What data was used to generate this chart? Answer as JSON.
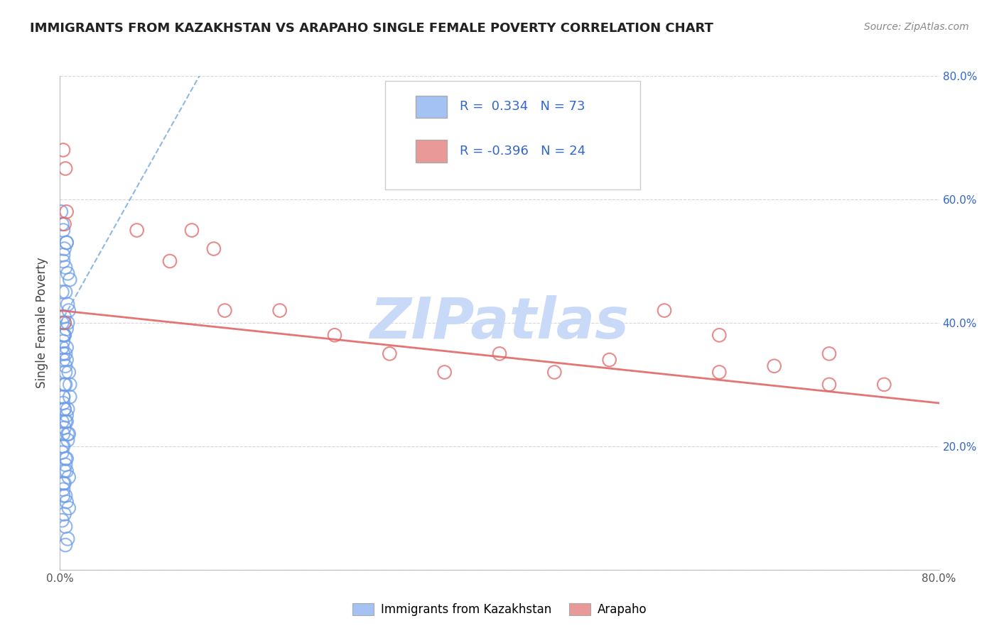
{
  "title": "IMMIGRANTS FROM KAZAKHSTAN VS ARAPAHO SINGLE FEMALE POVERTY CORRELATION CHART",
  "source": "Source: ZipAtlas.com",
  "ylabel": "Single Female Poverty",
  "xlim": [
    0.0,
    0.8
  ],
  "ylim": [
    0.0,
    0.8
  ],
  "color_blue": "#a4c2f4",
  "color_blue_edge": "#6d9eeb",
  "color_pink": "#ea9999",
  "color_pink_edge": "#e06666",
  "color_trend_blue": "#6fa8dc",
  "color_trend_pink": "#e06666",
  "watermark": "ZIPatlas",
  "watermark_color": "#c9daf8",
  "legend_label1": "Immigrants from Kazakhstan",
  "legend_label2": "Arapaho",
  "blue_scatter_x": [
    0.002,
    0.003,
    0.001,
    0.004,
    0.005,
    0.003,
    0.002,
    0.006,
    0.004,
    0.003,
    0.007,
    0.005,
    0.008,
    0.004,
    0.003,
    0.002,
    0.006,
    0.005,
    0.009,
    0.003,
    0.004,
    0.002,
    0.007,
    0.003,
    0.005,
    0.006,
    0.004,
    0.003,
    0.008,
    0.002,
    0.005,
    0.003,
    0.006,
    0.004,
    0.007,
    0.002,
    0.009,
    0.005,
    0.003,
    0.006,
    0.004,
    0.003,
    0.007,
    0.005,
    0.008,
    0.002,
    0.006,
    0.004,
    0.003,
    0.005,
    0.007,
    0.004,
    0.006,
    0.003,
    0.008,
    0.005,
    0.009,
    0.004,
    0.006,
    0.003,
    0.007,
    0.005,
    0.004,
    0.006,
    0.003,
    0.008,
    0.005,
    0.002,
    0.007,
    0.004,
    0.006,
    0.003,
    0.005
  ],
  "blue_scatter_y": [
    0.4,
    0.35,
    0.58,
    0.38,
    0.33,
    0.55,
    0.56,
    0.53,
    0.52,
    0.5,
    0.48,
    0.45,
    0.42,
    0.4,
    0.38,
    0.36,
    0.34,
    0.32,
    0.3,
    0.28,
    0.26,
    0.24,
    0.22,
    0.2,
    0.18,
    0.16,
    0.14,
    0.12,
    0.1,
    0.08,
    0.35,
    0.37,
    0.39,
    0.41,
    0.43,
    0.45,
    0.47,
    0.49,
    0.51,
    0.53,
    0.3,
    0.28,
    0.26,
    0.24,
    0.22,
    0.2,
    0.18,
    0.16,
    0.14,
    0.12,
    0.4,
    0.38,
    0.36,
    0.34,
    0.32,
    0.3,
    0.28,
    0.26,
    0.24,
    0.22,
    0.05,
    0.07,
    0.09,
    0.11,
    0.13,
    0.15,
    0.17,
    0.19,
    0.21,
    0.23,
    0.25,
    0.27,
    0.04
  ],
  "pink_scatter_x": [
    0.003,
    0.005,
    0.004,
    0.006,
    0.004,
    0.12,
    0.14,
    0.07,
    0.1,
    0.15,
    0.2,
    0.25,
    0.55,
    0.6,
    0.65,
    0.7,
    0.75,
    0.3,
    0.35,
    0.4,
    0.5,
    0.45,
    0.6,
    0.7
  ],
  "pink_scatter_y": [
    0.68,
    0.65,
    0.56,
    0.58,
    0.4,
    0.55,
    0.52,
    0.55,
    0.5,
    0.42,
    0.42,
    0.38,
    0.42,
    0.38,
    0.33,
    0.35,
    0.3,
    0.35,
    0.32,
    0.35,
    0.34,
    0.32,
    0.32,
    0.3
  ],
  "blue_trend_x": [
    0.0,
    0.13
  ],
  "blue_trend_y": [
    0.398,
    0.81
  ],
  "pink_trend_x": [
    0.0,
    0.8
  ],
  "pink_trend_y": [
    0.42,
    0.27
  ]
}
